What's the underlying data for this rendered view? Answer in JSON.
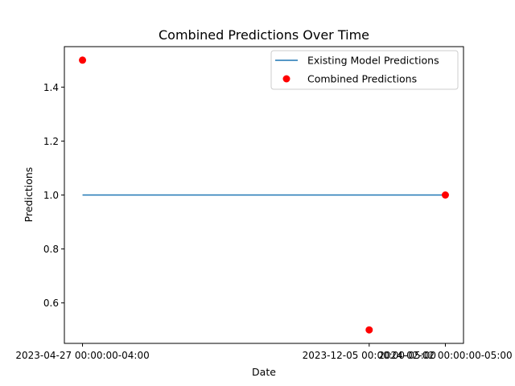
{
  "chart_data": {
    "type": "line",
    "title": "Combined Predictions Over Time",
    "xlabel": "Date",
    "ylabel": "Predictions",
    "x_ticks": [
      "2023-04-27 00:00:00-04:00",
      "2023-12-05 00:00:00-05:00",
      "2024-02-02 00:00:00-05:00"
    ],
    "ylim": [
      0.45,
      1.55
    ],
    "y_ticks": [
      0.6,
      0.8,
      1.0,
      1.2,
      1.4
    ],
    "series": [
      {
        "name": "Existing Model Predictions",
        "kind": "line",
        "color": "#1f77b4",
        "x": [
          "2023-04-27 00:00:00-04:00",
          "2023-12-05 00:00:00-05:00",
          "2024-02-02 00:00:00-05:00"
        ],
        "y": [
          1.0,
          1.0,
          1.0
        ]
      },
      {
        "name": "Combined Predictions",
        "kind": "scatter",
        "color": "#ff0000",
        "x": [
          "2023-04-27 00:00:00-04:00",
          "2023-12-05 00:00:00-05:00",
          "2024-02-02 00:00:00-05:00"
        ],
        "y": [
          1.5,
          0.5,
          1.0
        ]
      }
    ],
    "legend_position": "top-right",
    "grid": false
  }
}
